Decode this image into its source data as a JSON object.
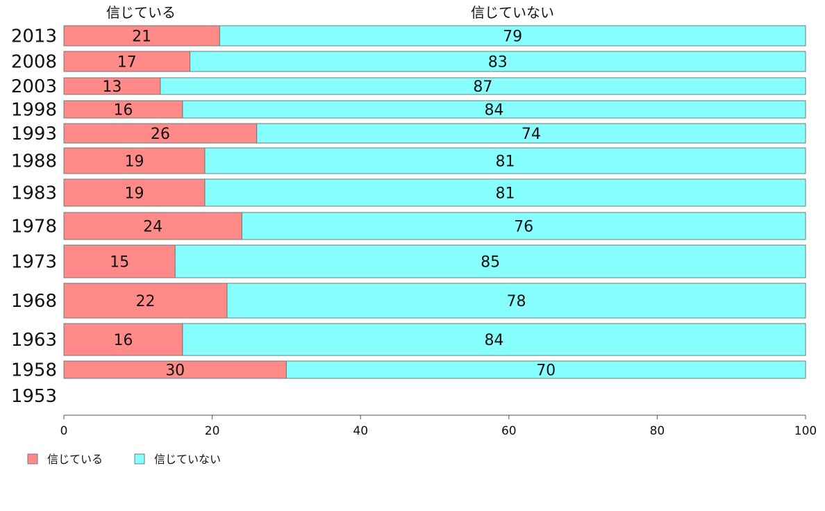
{
  "chart_data": {
    "type": "bar",
    "orientation": "horizontal",
    "stacked": true,
    "headers": [
      "信じている",
      "信じていない"
    ],
    "categories": [
      "2013",
      "2008",
      "2003",
      "1998",
      "1993",
      "1988",
      "1983",
      "1978",
      "1973",
      "1968",
      "1963",
      "1958",
      "1953"
    ],
    "series": [
      {
        "name": "信じている",
        "color": "#ff8a87",
        "values": [
          21,
          17,
          13,
          16,
          26,
          19,
          19,
          24,
          15,
          22,
          16,
          30,
          null
        ]
      },
      {
        "name": "信じていない",
        "color": "#87ffff",
        "values": [
          79,
          83,
          87,
          84,
          74,
          81,
          81,
          76,
          85,
          78,
          84,
          70,
          null
        ]
      }
    ],
    "xlim": [
      0,
      100
    ],
    "xticks": [
      0,
      20,
      40,
      60,
      80,
      100
    ],
    "grid": false,
    "legend_position": "bottom-left"
  }
}
